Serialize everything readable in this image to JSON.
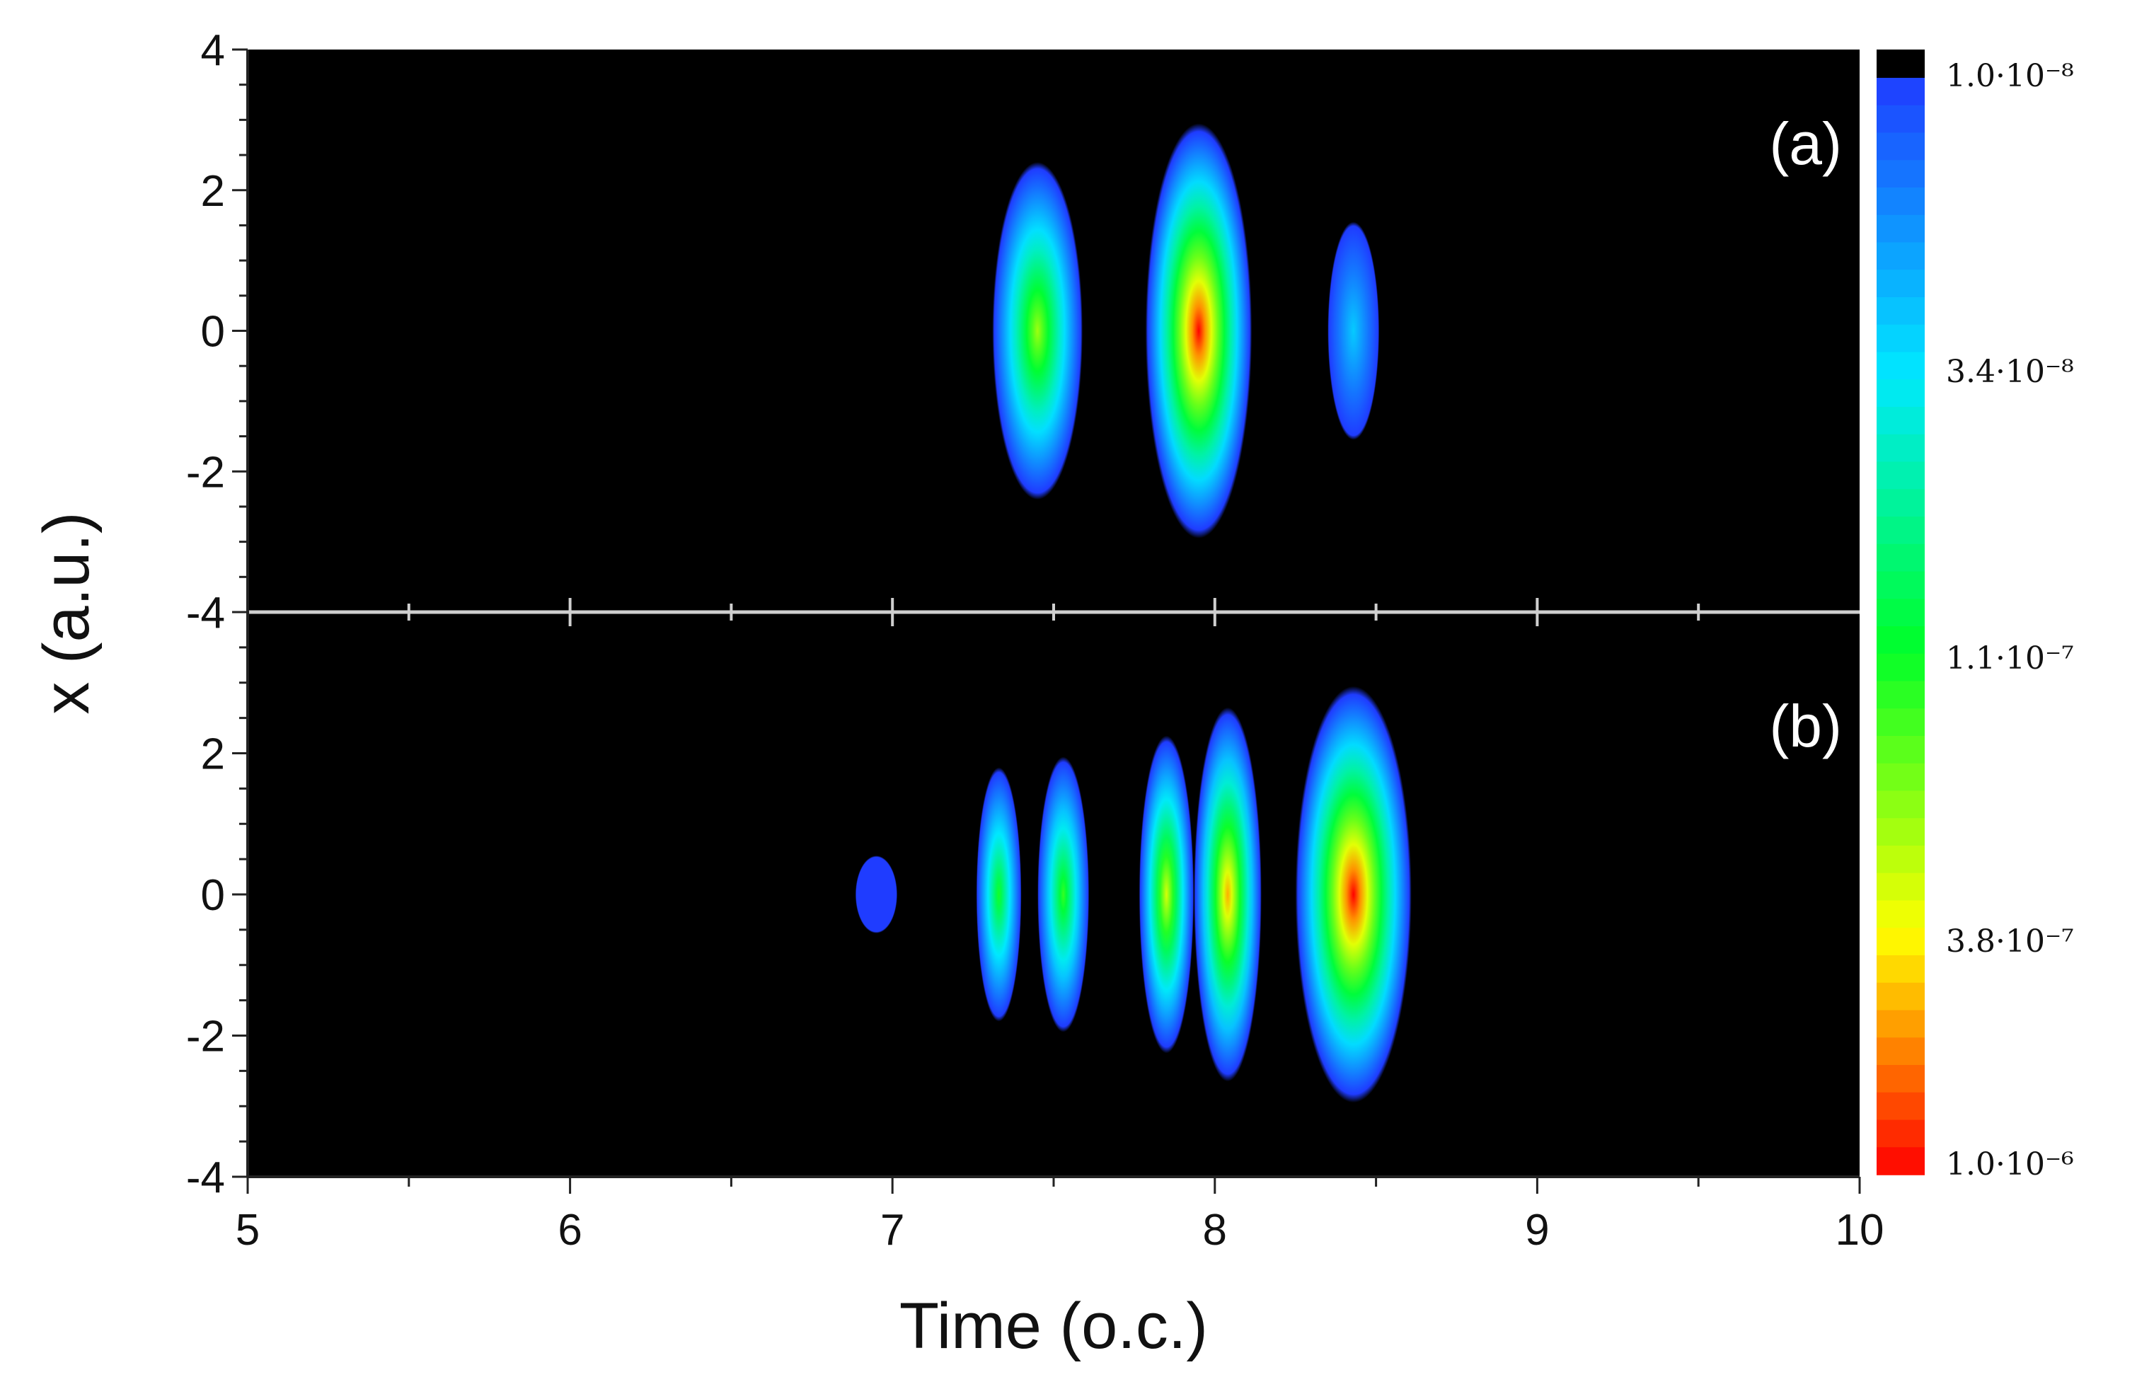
{
  "chart_data": {
    "type": "heatmap",
    "xlabel": "Time (o.c.)",
    "ylabel": "x (a.u.)",
    "xlim": [
      5,
      10
    ],
    "ylim": [
      -4,
      4
    ],
    "x_ticks": [
      "5",
      "6",
      "7",
      "8",
      "9",
      "10"
    ],
    "y_ticks": [
      "-4",
      "-2",
      "0",
      "2",
      "4"
    ],
    "colorbar": {
      "scale": "log",
      "range": [
        1e-08,
        1e-06
      ],
      "labels": [
        "1.0·10⁻⁸",
        "3.4·10⁻⁸",
        "1.1·10⁻⁷",
        "3.8·10⁻⁷",
        "1.0·10⁻⁶"
      ],
      "colors": [
        "#000000",
        "#1f3cff",
        "#00e8ff",
        "#00ff2a",
        "#ffff00",
        "#ff0000"
      ]
    },
    "panels": [
      {
        "label": "(a)",
        "blobs": [
          {
            "t": 7.45,
            "x": 0,
            "width_t": 0.28,
            "height_x": 4.8,
            "peak": 2.3e-07
          },
          {
            "t": 7.95,
            "x": 0,
            "width_t": 0.33,
            "height_x": 5.9,
            "peak": 1e-06
          },
          {
            "t": 8.43,
            "x": 0,
            "width_t": 0.16,
            "height_x": 3.1,
            "peak": 2.8e-08
          }
        ]
      },
      {
        "label": "(b)",
        "blobs": [
          {
            "t": 6.95,
            "x": 0,
            "width_t": 0.13,
            "height_x": 1.1,
            "peak": 1e-08
          },
          {
            "t": 7.33,
            "x": 0,
            "width_t": 0.14,
            "height_x": 3.6,
            "peak": 1.2e-07
          },
          {
            "t": 7.53,
            "x": 0,
            "width_t": 0.16,
            "height_x": 3.9,
            "peak": 1.4e-07
          },
          {
            "t": 7.85,
            "x": 0,
            "width_t": 0.17,
            "height_x": 4.5,
            "peak": 3e-07
          },
          {
            "t": 8.04,
            "x": 0,
            "width_t": 0.21,
            "height_x": 5.3,
            "peak": 5e-07
          },
          {
            "t": 8.43,
            "x": 0,
            "width_t": 0.36,
            "height_x": 5.9,
            "peak": 1e-06
          }
        ]
      }
    ]
  }
}
